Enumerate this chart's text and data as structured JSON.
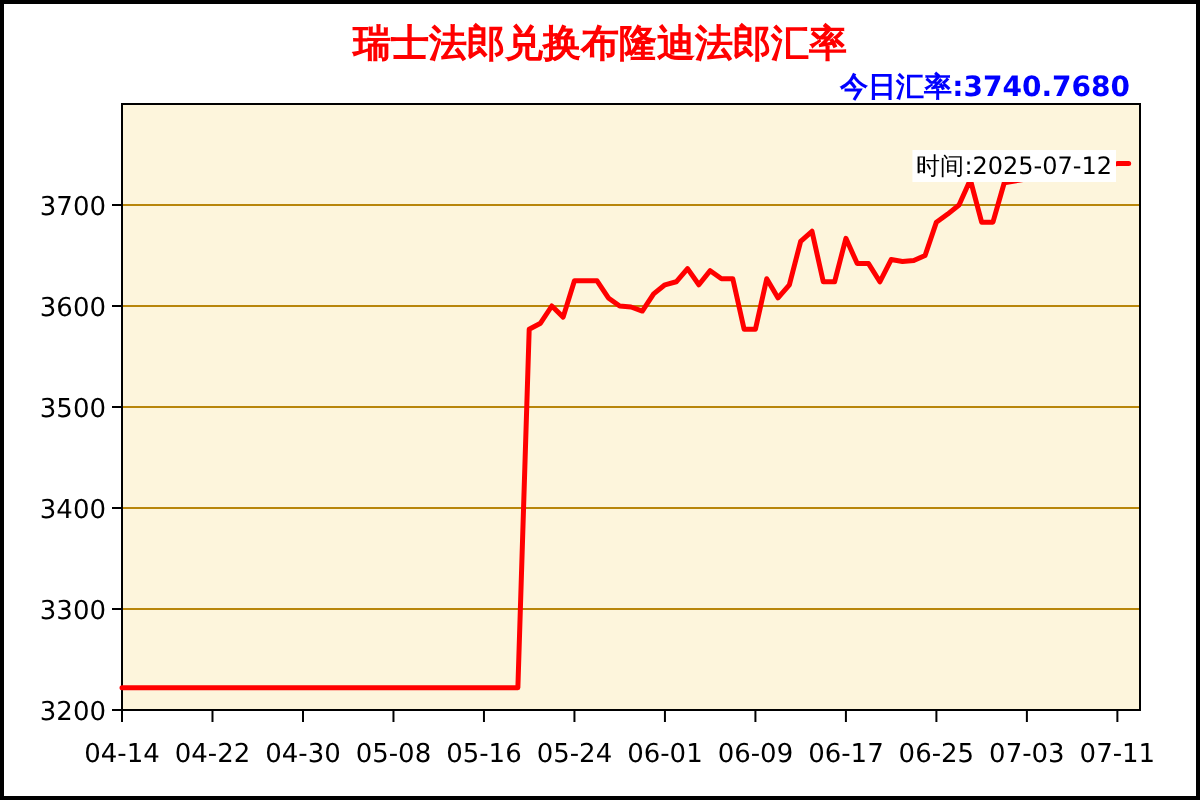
{
  "chart_data": {
    "type": "line",
    "title": "瑞士法郎兑换布隆迪法郎汇率",
    "annotations": [
      "今日汇率:3740.7680",
      "时间:2025-07-12"
    ],
    "x": [
      "2025-04-14",
      "2025-05-19",
      "2025-05-20",
      "2025-05-21",
      "2025-05-22",
      "2025-05-23",
      "2025-05-24",
      "2025-05-25",
      "2025-05-26",
      "2025-05-27",
      "2025-05-28",
      "2025-05-29",
      "2025-05-30",
      "2025-05-31",
      "2025-06-01",
      "2025-06-02",
      "2025-06-03",
      "2025-06-04",
      "2025-06-05",
      "2025-06-06",
      "2025-06-07",
      "2025-06-08",
      "2025-06-09",
      "2025-06-10",
      "2025-06-11",
      "2025-06-12",
      "2025-06-13",
      "2025-06-14",
      "2025-06-15",
      "2025-06-16",
      "2025-06-17",
      "2025-06-18",
      "2025-06-19",
      "2025-06-20",
      "2025-06-21",
      "2025-06-22",
      "2025-06-23",
      "2025-06-24",
      "2025-06-25",
      "2025-06-26",
      "2025-06-27",
      "2025-06-28",
      "2025-06-29",
      "2025-06-30",
      "2025-07-01",
      "2025-07-11",
      "2025-07-12"
    ],
    "series": [
      {
        "color": "#ff0000",
        "values": [
          3222,
          3222,
          3577,
          3583,
          3600,
          3589,
          3625,
          3625,
          3625,
          3608,
          3600,
          3599,
          3595,
          3612,
          3621,
          3624,
          3637,
          3621,
          3635,
          3627,
          3627,
          3577,
          3577,
          3627,
          3608,
          3621,
          3664,
          3674,
          3624,
          3624,
          3667,
          3642,
          3642,
          3624,
          3646,
          3644,
          3645,
          3650,
          3683,
          3691,
          3700,
          3725,
          3683,
          3683,
          3722,
          3741,
          3741
        ]
      }
    ],
    "xlim": [
      "2025-04-14",
      "2025-07-13"
    ],
    "ylim": [
      3200,
      3800
    ],
    "xticks": [
      {
        "value": "2025-04-14",
        "label": "04-14"
      },
      {
        "value": "2025-04-22",
        "label": "04-22"
      },
      {
        "value": "2025-04-30",
        "label": "04-30"
      },
      {
        "value": "2025-05-08",
        "label": "05-08"
      },
      {
        "value": "2025-05-16",
        "label": "05-16"
      },
      {
        "value": "2025-05-24",
        "label": "05-24"
      },
      {
        "value": "2025-06-01",
        "label": "06-01"
      },
      {
        "value": "2025-06-09",
        "label": "06-09"
      },
      {
        "value": "2025-06-17",
        "label": "06-17"
      },
      {
        "value": "2025-06-25",
        "label": "06-25"
      },
      {
        "value": "2025-07-03",
        "label": "07-03"
      },
      {
        "value": "2025-07-11",
        "label": "07-11"
      }
    ],
    "yticks": [
      3200,
      3300,
      3400,
      3500,
      3600,
      3700
    ],
    "grid": "y",
    "marker": "none",
    "line_style": "solid"
  }
}
